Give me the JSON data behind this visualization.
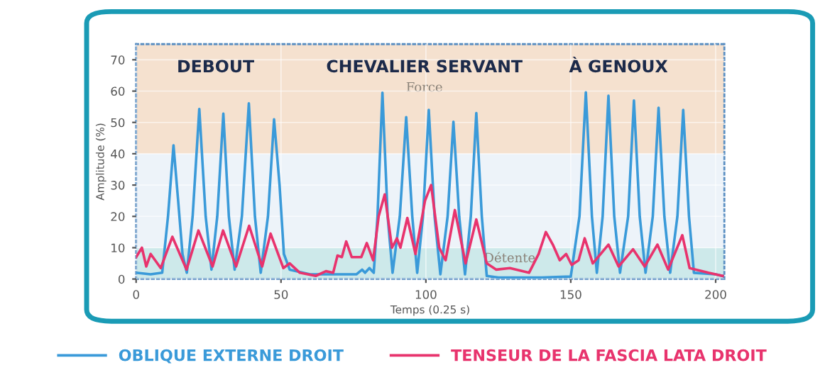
{
  "chart_data": {
    "type": "line",
    "xlabel": "Temps (0.25 s)",
    "ylabel": "Amplitude (%)",
    "xlim": [
      0,
      203
    ],
    "ylim": [
      0,
      75
    ],
    "xticks": [
      0,
      50,
      100,
      150,
      200
    ],
    "yticks": [
      0,
      10,
      20,
      30,
      40,
      50,
      60,
      70
    ],
    "grid": true,
    "legend": "bottom",
    "marker": "none",
    "line_style": "solid",
    "bands": [
      {
        "axis": "y",
        "from": 0,
        "to": 10,
        "label": "Détente",
        "color": "#cde9ea"
      },
      {
        "axis": "y",
        "from": 10,
        "to": 40,
        "label": null,
        "color": "#edf3f9"
      },
      {
        "axis": "y",
        "from": 40,
        "to": 75,
        "label": "Force",
        "color": "#f5e1cf"
      }
    ],
    "annotations": [
      "DEBOUT",
      "CHEVALIER SERVANT",
      "À GENOUX"
    ],
    "series": [
      {
        "name": "OBLIQUE EXTERNE DROIT",
        "color": "#3a9ad9",
        "x": [
          0,
          5,
          9,
          11,
          12.9,
          14.5,
          16,
          17.5,
          19.5,
          21.8,
          24,
          26,
          28,
          30.1,
          32,
          34,
          36.5,
          38.9,
          41,
          43,
          45.5,
          47.6,
          49.5,
          51,
          53,
          60,
          70,
          76,
          78,
          79,
          80.5,
          82,
          83.3,
          85,
          86.8,
          88.5,
          91,
          93.2,
          95.3,
          97,
          99,
          101,
          103,
          105,
          107.5,
          109.5,
          111.5,
          113.5,
          115.5,
          117.4,
          119.3,
          121,
          125,
          140,
          150,
          153,
          155.2,
          157.3,
          159,
          161,
          163,
          165,
          167,
          169.8,
          171.8,
          173.8,
          175.8,
          178.3,
          180.3,
          182.3,
          184.3,
          186.8,
          188.8,
          190.8,
          192.5,
          200,
          202.4
        ],
        "values": [
          2,
          1.5,
          2,
          20,
          42.7,
          25,
          8,
          2,
          20,
          54.3,
          20,
          3,
          20,
          52.8,
          20,
          3,
          20,
          56.1,
          20,
          2,
          20,
          51,
          30,
          8,
          3,
          1.5,
          1.5,
          1.5,
          3,
          2,
          3.5,
          2,
          20,
          59.5,
          20,
          2,
          20,
          51.7,
          20,
          2,
          20,
          54,
          20,
          1.5,
          20,
          50.2,
          20,
          1.5,
          20,
          53,
          20,
          1,
          0.5,
          0.5,
          0.8,
          20,
          59.6,
          20,
          2,
          20,
          58.5,
          20,
          2,
          20,
          57,
          20,
          2,
          20,
          54.7,
          20,
          2,
          20,
          54,
          20,
          2,
          1.5,
          1
        ]
      },
      {
        "name": "TENSEUR DE LA FASCIA LATA DROIT",
        "color": "#e8336d",
        "x": [
          0,
          2,
          3.5,
          5,
          8.5,
          12.5,
          17.4,
          21.5,
          26.4,
          30,
          34.5,
          39,
          43.5,
          46.4,
          50.8,
          53,
          56.5,
          62,
          65.5,
          68,
          69.5,
          71,
          72.5,
          74.4,
          77.7,
          79.6,
          81.8,
          83.7,
          85.8,
          88.3,
          90,
          91.2,
          93.6,
          96.4,
          99.7,
          101.8,
          104.6,
          106.8,
          110,
          113.7,
          117.4,
          121,
          124.3,
          129,
          135.6,
          138.9,
          141.4,
          143.8,
          146.2,
          148.4,
          150.3,
          152.7,
          154.8,
          157.6,
          163,
          166.5,
          171.5,
          175.5,
          179.9,
          183.6,
          188.5,
          191,
          197.5,
          202.4
        ],
        "values": [
          7,
          10,
          4,
          8,
          3.5,
          13.5,
          3,
          15.5,
          4,
          15.5,
          4,
          17,
          4,
          14.5,
          3.5,
          5,
          2,
          1,
          2.5,
          2,
          7.5,
          7,
          12,
          7,
          7,
          11.5,
          6,
          20,
          27,
          10,
          13,
          10,
          19.5,
          8,
          25,
          30,
          10,
          6,
          22,
          5,
          19,
          5,
          3,
          3.5,
          2,
          8,
          15,
          11,
          6,
          8,
          4.5,
          6,
          13,
          5,
          11,
          4,
          9.5,
          4,
          11,
          3,
          14,
          3.5,
          2,
          1
        ]
      }
    ]
  }
}
